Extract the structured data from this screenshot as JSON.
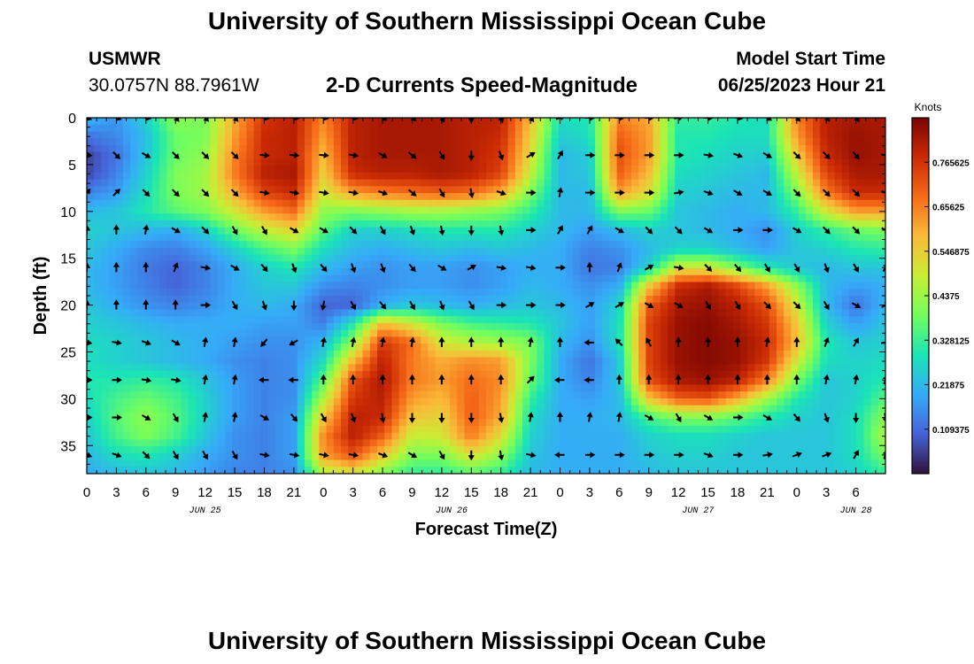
{
  "header": {
    "title": "University of Southern Mississippi Ocean Cube",
    "station": "USMWR",
    "coordinates": "30.0757N  88.7961W",
    "subtitle": "2-D Currents Speed-Magnitude",
    "model_start_label": "Model Start Time",
    "model_start_value": "06/25/2023 Hour 21"
  },
  "footer": {
    "title": "University of Southern Mississippi Ocean Cube"
  },
  "chart_data": {
    "type": "heatmap",
    "title": "2-D Currents Speed-Magnitude",
    "xlabel": "Forecast Time(Z)",
    "ylabel": "Depth (ft)",
    "x_range_hours": [
      0,
      81
    ],
    "y_range_ft": [
      0,
      38
    ],
    "x_ticks": [
      "0",
      "3",
      "6",
      "9",
      "12",
      "15",
      "18",
      "21",
      "0",
      "3",
      "6",
      "9",
      "12",
      "15",
      "18",
      "21",
      "0",
      "3",
      "6",
      "9",
      "12",
      "15",
      "18",
      "21",
      "0",
      "3",
      "6"
    ],
    "y_ticks": [
      "0",
      "5",
      "10",
      "15",
      "20",
      "25",
      "30",
      "35"
    ],
    "y_tick_values": [
      0,
      5,
      10,
      15,
      20,
      25,
      30,
      35
    ],
    "date_labels": [
      {
        "text": "JUN 25",
        "hour": 12
      },
      {
        "text": "JUN 26",
        "hour": 37
      },
      {
        "text": "JUN 27",
        "hour": 62
      },
      {
        "text": "JUN 28",
        "hour": 78
      }
    ],
    "colorbar": {
      "unit": "Knots",
      "range": [
        0,
        0.875
      ],
      "ticks": [
        "0.765625",
        "0.65625",
        "0.546875",
        "0.4375",
        "0.328125",
        "0.21875",
        "0.109375"
      ],
      "tick_values": [
        0.765625,
        0.65625,
        0.546875,
        0.4375,
        0.328125,
        0.21875,
        0.109375
      ],
      "colors": [
        "#30123b",
        "#4662d7",
        "#36aaf9",
        "#1ae4b6",
        "#72fe5e",
        "#c8ef34",
        "#faba39",
        "#f66b19",
        "#ca2a04",
        "#7a0403"
      ]
    },
    "speed_grid_note": "rows = depth 0..38 ft every 2 ft (20 rows), cols = hour 0..81 every 3 h (28 cols), values in knots",
    "speed_depths": [
      0,
      2,
      4,
      6,
      8,
      10,
      12,
      14,
      16,
      18,
      20,
      22,
      24,
      26,
      28,
      30,
      32,
      34,
      36,
      38
    ],
    "speed_hours": [
      0,
      3,
      6,
      9,
      12,
      15,
      18,
      21,
      24,
      27,
      30,
      33,
      36,
      39,
      42,
      45,
      48,
      51,
      54,
      57,
      60,
      63,
      66,
      69,
      72,
      75,
      78,
      81
    ],
    "speed_grid": [
      [
        0.22,
        0.17,
        0.26,
        0.42,
        0.4,
        0.6,
        0.76,
        0.8,
        0.65,
        0.8,
        0.82,
        0.82,
        0.82,
        0.8,
        0.8,
        0.58,
        0.28,
        0.3,
        0.65,
        0.6,
        0.32,
        0.32,
        0.3,
        0.28,
        0.65,
        0.8,
        0.82,
        0.82
      ],
      [
        0.12,
        0.15,
        0.23,
        0.38,
        0.4,
        0.62,
        0.78,
        0.8,
        0.62,
        0.8,
        0.82,
        0.82,
        0.82,
        0.8,
        0.78,
        0.55,
        0.25,
        0.28,
        0.7,
        0.62,
        0.3,
        0.3,
        0.28,
        0.28,
        0.62,
        0.8,
        0.84,
        0.82
      ],
      [
        0.06,
        0.12,
        0.24,
        0.38,
        0.42,
        0.65,
        0.78,
        0.8,
        0.58,
        0.8,
        0.82,
        0.82,
        0.82,
        0.8,
        0.76,
        0.52,
        0.22,
        0.25,
        0.72,
        0.62,
        0.3,
        0.28,
        0.26,
        0.25,
        0.55,
        0.78,
        0.84,
        0.82
      ],
      [
        0.06,
        0.14,
        0.26,
        0.4,
        0.44,
        0.66,
        0.8,
        0.82,
        0.55,
        0.78,
        0.8,
        0.8,
        0.82,
        0.8,
        0.74,
        0.48,
        0.22,
        0.24,
        0.7,
        0.58,
        0.28,
        0.26,
        0.24,
        0.22,
        0.48,
        0.74,
        0.82,
        0.82
      ],
      [
        0.14,
        0.18,
        0.28,
        0.4,
        0.44,
        0.6,
        0.74,
        0.78,
        0.5,
        0.62,
        0.66,
        0.68,
        0.7,
        0.68,
        0.6,
        0.4,
        0.22,
        0.22,
        0.62,
        0.52,
        0.26,
        0.24,
        0.22,
        0.22,
        0.4,
        0.66,
        0.78,
        0.78
      ],
      [
        0.22,
        0.24,
        0.3,
        0.36,
        0.4,
        0.5,
        0.62,
        0.68,
        0.42,
        0.4,
        0.42,
        0.44,
        0.44,
        0.42,
        0.4,
        0.32,
        0.22,
        0.22,
        0.4,
        0.38,
        0.24,
        0.22,
        0.2,
        0.22,
        0.32,
        0.5,
        0.62,
        0.62
      ],
      [
        0.26,
        0.24,
        0.22,
        0.2,
        0.26,
        0.38,
        0.48,
        0.54,
        0.36,
        0.26,
        0.26,
        0.28,
        0.3,
        0.3,
        0.3,
        0.26,
        0.22,
        0.18,
        0.22,
        0.26,
        0.24,
        0.22,
        0.2,
        0.16,
        0.26,
        0.32,
        0.38,
        0.4
      ],
      [
        0.24,
        0.2,
        0.15,
        0.14,
        0.18,
        0.26,
        0.34,
        0.4,
        0.28,
        0.22,
        0.2,
        0.22,
        0.24,
        0.22,
        0.24,
        0.22,
        0.2,
        0.14,
        0.16,
        0.22,
        0.26,
        0.26,
        0.22,
        0.18,
        0.24,
        0.26,
        0.3,
        0.32
      ],
      [
        0.22,
        0.18,
        0.13,
        0.1,
        0.14,
        0.2,
        0.26,
        0.3,
        0.22,
        0.18,
        0.16,
        0.18,
        0.18,
        0.16,
        0.18,
        0.2,
        0.2,
        0.12,
        0.14,
        0.26,
        0.5,
        0.5,
        0.4,
        0.3,
        0.24,
        0.22,
        0.24,
        0.24
      ],
      [
        0.22,
        0.18,
        0.14,
        0.1,
        0.14,
        0.2,
        0.24,
        0.24,
        0.16,
        0.14,
        0.16,
        0.18,
        0.18,
        0.16,
        0.18,
        0.22,
        0.2,
        0.16,
        0.2,
        0.56,
        0.78,
        0.82,
        0.74,
        0.62,
        0.42,
        0.22,
        0.18,
        0.2
      ],
      [
        0.24,
        0.2,
        0.16,
        0.14,
        0.16,
        0.2,
        0.22,
        0.2,
        0.1,
        0.1,
        0.2,
        0.24,
        0.22,
        0.2,
        0.22,
        0.24,
        0.22,
        0.18,
        0.26,
        0.7,
        0.82,
        0.84,
        0.8,
        0.72,
        0.5,
        0.22,
        0.12,
        0.22
      ],
      [
        0.26,
        0.24,
        0.22,
        0.2,
        0.2,
        0.2,
        0.18,
        0.18,
        0.14,
        0.3,
        0.58,
        0.5,
        0.4,
        0.34,
        0.32,
        0.3,
        0.24,
        0.18,
        0.28,
        0.74,
        0.84,
        0.86,
        0.82,
        0.76,
        0.56,
        0.26,
        0.18,
        0.24
      ],
      [
        0.28,
        0.26,
        0.24,
        0.22,
        0.2,
        0.18,
        0.16,
        0.16,
        0.22,
        0.42,
        0.76,
        0.68,
        0.5,
        0.46,
        0.44,
        0.4,
        0.22,
        0.16,
        0.28,
        0.74,
        0.84,
        0.86,
        0.84,
        0.78,
        0.58,
        0.3,
        0.24,
        0.26
      ],
      [
        0.28,
        0.26,
        0.24,
        0.22,
        0.2,
        0.16,
        0.14,
        0.16,
        0.28,
        0.58,
        0.8,
        0.66,
        0.6,
        0.64,
        0.62,
        0.4,
        0.2,
        0.12,
        0.24,
        0.74,
        0.84,
        0.86,
        0.84,
        0.76,
        0.5,
        0.28,
        0.26,
        0.28
      ],
      [
        0.3,
        0.3,
        0.32,
        0.3,
        0.24,
        0.18,
        0.14,
        0.16,
        0.36,
        0.72,
        0.82,
        0.66,
        0.62,
        0.68,
        0.64,
        0.38,
        0.2,
        0.14,
        0.24,
        0.72,
        0.82,
        0.84,
        0.8,
        0.66,
        0.4,
        0.24,
        0.26,
        0.3
      ],
      [
        0.28,
        0.34,
        0.38,
        0.34,
        0.26,
        0.18,
        0.14,
        0.16,
        0.46,
        0.76,
        0.8,
        0.62,
        0.58,
        0.7,
        0.62,
        0.32,
        0.2,
        0.18,
        0.22,
        0.56,
        0.7,
        0.72,
        0.6,
        0.44,
        0.3,
        0.24,
        0.26,
        0.36
      ],
      [
        0.26,
        0.36,
        0.42,
        0.36,
        0.26,
        0.18,
        0.14,
        0.18,
        0.56,
        0.8,
        0.78,
        0.56,
        0.54,
        0.7,
        0.6,
        0.28,
        0.2,
        0.2,
        0.22,
        0.34,
        0.4,
        0.4,
        0.36,
        0.3,
        0.26,
        0.24,
        0.28,
        0.42
      ],
      [
        0.24,
        0.34,
        0.4,
        0.34,
        0.24,
        0.16,
        0.14,
        0.18,
        0.64,
        0.8,
        0.7,
        0.48,
        0.5,
        0.66,
        0.52,
        0.26,
        0.2,
        0.2,
        0.2,
        0.26,
        0.28,
        0.28,
        0.26,
        0.24,
        0.24,
        0.24,
        0.28,
        0.46
      ],
      [
        0.22,
        0.28,
        0.3,
        0.26,
        0.2,
        0.16,
        0.14,
        0.18,
        0.62,
        0.72,
        0.56,
        0.4,
        0.4,
        0.52,
        0.42,
        0.24,
        0.2,
        0.2,
        0.2,
        0.24,
        0.26,
        0.26,
        0.24,
        0.24,
        0.24,
        0.24,
        0.28,
        0.4
      ],
      [
        0.2,
        0.22,
        0.24,
        0.22,
        0.18,
        0.14,
        0.14,
        0.16,
        0.46,
        0.5,
        0.4,
        0.32,
        0.32,
        0.36,
        0.32,
        0.22,
        0.2,
        0.2,
        0.2,
        0.22,
        0.24,
        0.24,
        0.24,
        0.24,
        0.24,
        0.24,
        0.26,
        0.32
      ]
    ],
    "vector_note": "arrow direction in degrees (0 = pointing up/north, clockwise), arrows every 4 ft starting at 0 ft, every 3 h starting at hour 0",
    "vector_depths": [
      0,
      4,
      8,
      12,
      16,
      20,
      24,
      28,
      32,
      36
    ],
    "vector_hours": [
      0,
      3,
      6,
      9,
      12,
      15,
      18,
      21,
      24,
      27,
      30,
      33,
      36,
      39,
      42,
      45,
      48,
      51,
      54,
      57,
      60,
      63,
      66,
      69,
      72,
      75,
      78,
      81
    ],
    "vector_dirs": [
      [
        110,
        110,
        100,
        135,
        135,
        135,
        100,
        100,
        100,
        100,
        120,
        130,
        150,
        180,
        160,
        140,
        70,
        90,
        90,
        90,
        80,
        90,
        100,
        120,
        135,
        135,
        140,
        100
      ],
      [
        95,
        135,
        120,
        135,
        135,
        135,
        95,
        95,
        95,
        100,
        120,
        130,
        150,
        180,
        160,
        60,
        30,
        90,
        90,
        90,
        90,
        100,
        110,
        120,
        135,
        135,
        140,
        100
      ],
      [
        45,
        45,
        135,
        135,
        135,
        135,
        100,
        100,
        100,
        100,
        110,
        130,
        150,
        170,
        110,
        90,
        10,
        90,
        90,
        90,
        80,
        110,
        120,
        120,
        135,
        135,
        135,
        110
      ],
      [
        0,
        0,
        10,
        120,
        135,
        150,
        150,
        120,
        120,
        135,
        150,
        160,
        170,
        180,
        170,
        90,
        30,
        30,
        120,
        135,
        135,
        120,
        90,
        90,
        120,
        135,
        135,
        120
      ],
      [
        0,
        0,
        0,
        20,
        100,
        120,
        140,
        160,
        140,
        160,
        160,
        140,
        120,
        60,
        100,
        100,
        90,
        0,
        20,
        60,
        100,
        135,
        140,
        150,
        150,
        160,
        150,
        30
      ],
      [
        0,
        0,
        0,
        0,
        90,
        150,
        160,
        180,
        190,
        150,
        140,
        150,
        160,
        150,
        90,
        90,
        90,
        60,
        60,
        120,
        120,
        150,
        150,
        135,
        135,
        150,
        120,
        60
      ],
      [
        100,
        100,
        110,
        120,
        10,
        10,
        220,
        240,
        10,
        10,
        10,
        10,
        0,
        0,
        0,
        10,
        0,
        270,
        315,
        330,
        0,
        0,
        0,
        10,
        0,
        20,
        30,
        80
      ],
      [
        90,
        90,
        100,
        100,
        10,
        10,
        270,
        270,
        0,
        0,
        0,
        0,
        0,
        0,
        0,
        45,
        270,
        270,
        0,
        0,
        0,
        0,
        0,
        0,
        0,
        10,
        10,
        20
      ],
      [
        90,
        90,
        120,
        150,
        10,
        10,
        120,
        140,
        150,
        160,
        170,
        180,
        180,
        180,
        170,
        10,
        0,
        10,
        10,
        120,
        150,
        120,
        90,
        120,
        140,
        160,
        180,
        170
      ],
      [
        110,
        110,
        135,
        150,
        150,
        150,
        100,
        100,
        100,
        100,
        110,
        120,
        150,
        180,
        170,
        100,
        270,
        90,
        90,
        90,
        90,
        110,
        90,
        80,
        70,
        70,
        30,
        20
      ]
    ],
    "axes_style": {
      "grid": false,
      "colorbar_position": "right"
    }
  }
}
